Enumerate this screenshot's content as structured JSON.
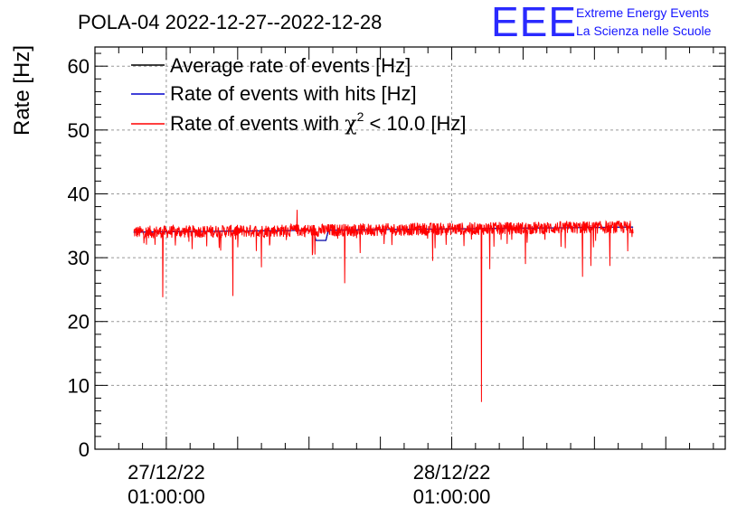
{
  "chart_data": {
    "type": "line",
    "title": "POLA-04 2022-12-27--2022-12-28",
    "ylabel": "Rate [Hz]",
    "xlabel": "",
    "ylim": [
      0,
      63
    ],
    "yticks": [
      0,
      10,
      20,
      30,
      40,
      50,
      60
    ],
    "xticks": [
      {
        "line1": "27/12/22",
        "line2": "01:00:00",
        "t": 1.0
      },
      {
        "line1": "28/12/22",
        "line2": "01:00:00",
        "t": 25.0
      }
    ],
    "xlim_hours": [
      -5.0,
      48.0
    ],
    "data_range_hours": [
      -1.75,
      40.25
    ],
    "grid": true,
    "legend_position": "top-left",
    "legend": [
      {
        "name": "Average rate of events [Hz]",
        "color": "#000000"
      },
      {
        "name": "Rate of events with hits [Hz]",
        "color": "#0000cc"
      },
      {
        "name_prefix": "Rate of events with ",
        "name_symbol": "χ",
        "name_sup": "2",
        "name_suffix": " < 10.0 [Hz]",
        "color": "#ff0000"
      }
    ],
    "series": [
      {
        "name": "Average rate of events [Hz]",
        "color": "#000000",
        "baseline": 34.0
      },
      {
        "name": "Rate of events with hits [Hz]",
        "color": "#0000cc",
        "baseline": 34.0
      },
      {
        "name": "Rate of events with χ2 < 10.0 [Hz]",
        "color": "#ff0000",
        "baseline_start": 34.0,
        "baseline_end": 34.8,
        "noise_amplitude": 1.0,
        "dips": [
          {
            "t": 0.7,
            "value": 23.8
          },
          {
            "t": 6.6,
            "value": 24.0
          },
          {
            "t": 9.0,
            "value": 28.5
          },
          {
            "t": 13.5,
            "value": 30.5
          },
          {
            "t": 16.0,
            "value": 26.0
          },
          {
            "t": 23.4,
            "value": 29.5
          },
          {
            "t": 27.5,
            "value": 7.4
          },
          {
            "t": 28.2,
            "value": 28.2
          },
          {
            "t": 31.2,
            "value": 29.0
          },
          {
            "t": 36.0,
            "value": 27.0
          },
          {
            "t": 36.7,
            "value": 28.7
          },
          {
            "t": 38.3,
            "value": 28.7
          },
          {
            "t": 39.8,
            "value": 31.0
          }
        ],
        "spikes": [
          {
            "t": 12.0,
            "value": 37.5
          }
        ]
      }
    ]
  },
  "logo": {
    "letters": "EEE",
    "line1": "Extreme Energy Events",
    "line2": "La Scienza nelle Scuole"
  }
}
